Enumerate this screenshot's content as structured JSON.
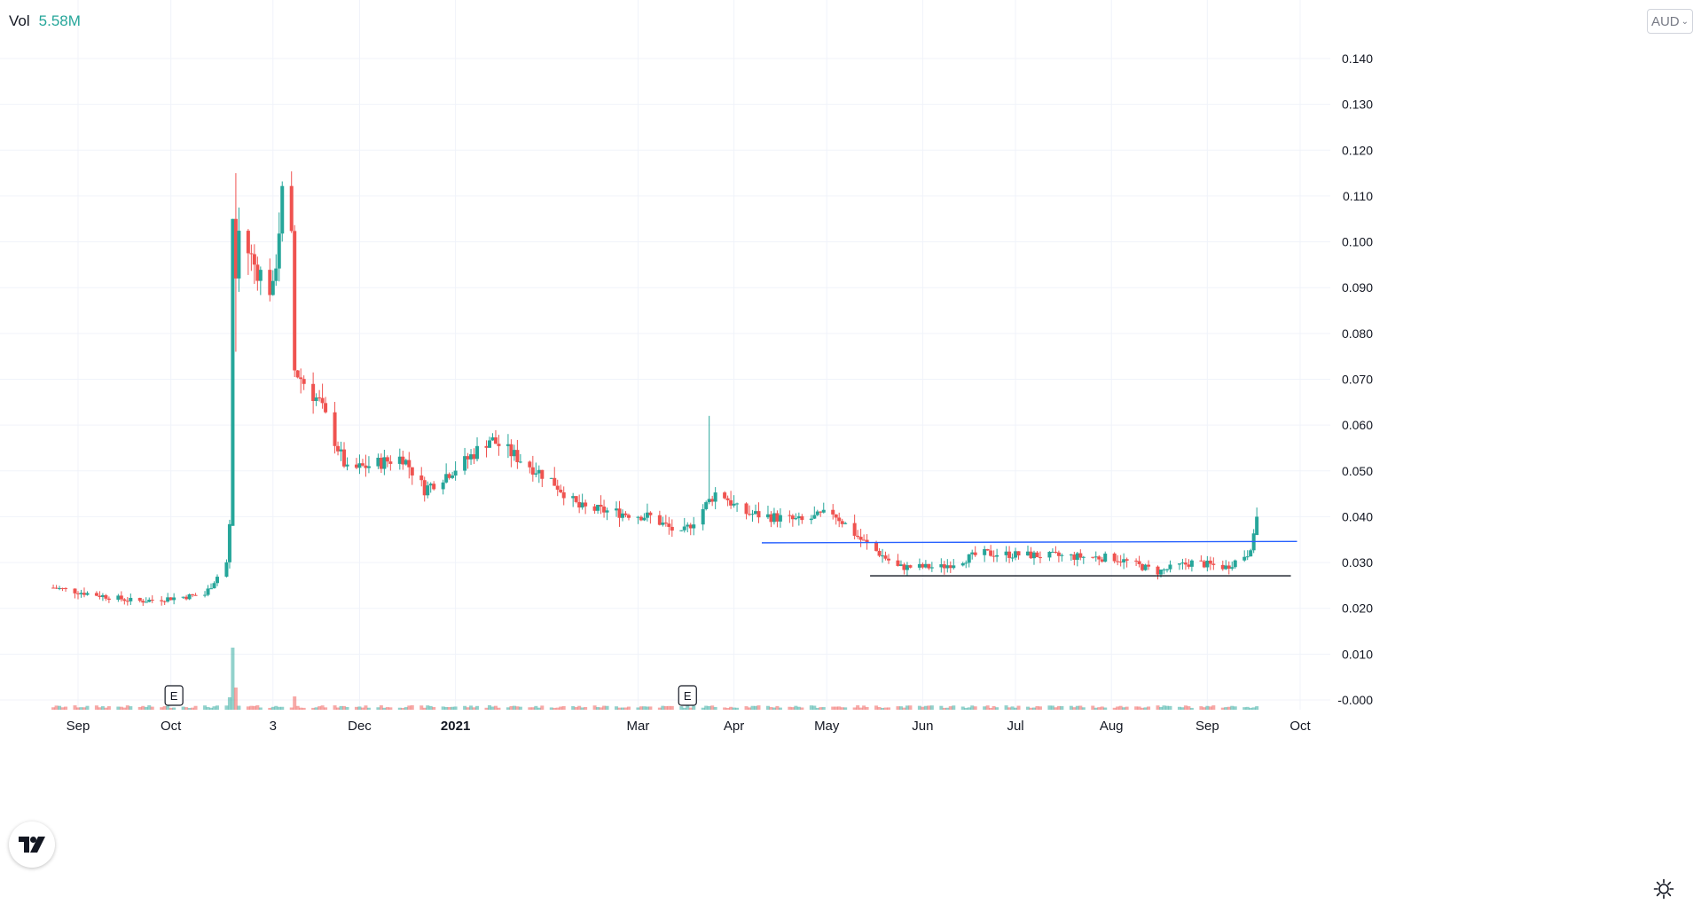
{
  "legend": {
    "label": "Vol",
    "value": "5.58M"
  },
  "currency": {
    "label": "AUD",
    "icon": "chevron-down-icon"
  },
  "colors": {
    "up": "#26a69a",
    "down": "#ef5350",
    "grid": "#f0f3fa",
    "axis_text": "#131722",
    "trendline": "#2962ff"
  },
  "chart_data": {
    "type": "candlestick",
    "title": "",
    "y_axis": {
      "ticks": [
        "0.140",
        "0.130",
        "0.120",
        "0.110",
        "0.100",
        "0.090",
        "0.080",
        "0.070",
        "0.060",
        "0.050",
        "0.040",
        "0.030",
        "0.020",
        "0.010",
        "-0.000"
      ],
      "range": [
        -0.002,
        0.15
      ],
      "position": "right"
    },
    "x_axis": {
      "ticks": [
        "Sep",
        "Oct",
        "3",
        "Dec",
        "2021",
        "Mar",
        "Apr",
        "May",
        "Jun",
        "Jul",
        "Aug",
        "Sep",
        "Oct"
      ],
      "date_range": [
        "2020-08-24",
        "2021-10-10"
      ]
    },
    "earnings_markers": [
      {
        "label": "E",
        "date": "2020-10-02"
      },
      {
        "label": "E",
        "date": "2021-03-17"
      }
    ],
    "key_points": [
      {
        "date": "2020-08-24",
        "price": 0.0245
      },
      {
        "date": "2020-09-20",
        "price": 0.0215
      },
      {
        "date": "2020-10-12",
        "price": 0.023
      },
      {
        "date": "2020-10-19",
        "price": 0.03
      },
      {
        "date": "2020-10-20",
        "price": 0.038
      },
      {
        "date": "2020-10-21",
        "price": 0.105
      },
      {
        "date": "2020-10-28",
        "price": 0.095
      },
      {
        "date": "2020-11-03",
        "price": 0.089
      },
      {
        "date": "2020-11-06",
        "price": 0.11
      },
      {
        "date": "2020-11-09",
        "price": 0.1
      },
      {
        "date": "2020-11-10",
        "price": 0.072
      },
      {
        "date": "2020-11-18",
        "price": 0.065
      },
      {
        "date": "2020-11-27",
        "price": 0.05
      },
      {
        "date": "2020-12-15",
        "price": 0.053
      },
      {
        "date": "2020-12-22",
        "price": 0.046
      },
      {
        "date": "2021-01-04",
        "price": 0.052
      },
      {
        "date": "2021-01-12",
        "price": 0.057
      },
      {
        "date": "2021-02-01",
        "price": 0.048
      },
      {
        "date": "2021-02-10",
        "price": 0.042
      },
      {
        "date": "2021-03-05",
        "price": 0.04
      },
      {
        "date": "2021-03-15",
        "price": 0.036
      },
      {
        "date": "2021-03-20",
        "price": 0.04
      },
      {
        "date": "2021-03-27",
        "price": 0.046
      },
      {
        "date": "2021-04-03",
        "price": 0.041
      },
      {
        "date": "2021-04-23",
        "price": 0.039
      },
      {
        "date": "2021-05-03",
        "price": 0.041
      },
      {
        "date": "2021-05-12",
        "price": 0.035
      },
      {
        "date": "2021-05-24",
        "price": 0.029
      },
      {
        "date": "2021-06-07",
        "price": 0.029
      },
      {
        "date": "2021-06-20",
        "price": 0.032
      },
      {
        "date": "2021-07-10",
        "price": 0.0315
      },
      {
        "date": "2021-08-02",
        "price": 0.031
      },
      {
        "date": "2021-08-16",
        "price": 0.028
      },
      {
        "date": "2021-08-27",
        "price": 0.03
      },
      {
        "date": "2021-09-07",
        "price": 0.029
      },
      {
        "date": "2021-09-14",
        "price": 0.032
      },
      {
        "date": "2021-09-17",
        "price": 0.037
      }
    ],
    "volume": {
      "baseline": "bottom",
      "spikes": [
        {
          "date": "2020-10-20",
          "value_rel": 0.14,
          "dir": "up"
        },
        {
          "date": "2020-10-21",
          "value_rel": 0.7,
          "dir": "up"
        },
        {
          "date": "2020-10-22",
          "value_rel": 0.25,
          "dir": "down"
        },
        {
          "date": "2020-11-10",
          "value_rel": 0.15,
          "dir": "down"
        },
        {
          "date": "2021-01-12",
          "value_rel": 0.05,
          "dir": "up"
        },
        {
          "date": "2021-03-24",
          "value_rel": 0.04,
          "dir": "down"
        }
      ]
    },
    "trendlines": [
      {
        "from": {
          "date": "2021-04-10",
          "price": 0.0343
        },
        "to": {
          "date": "2021-09-30",
          "price": 0.0346
        }
      },
      {
        "from": {
          "date": "2021-05-15",
          "price": 0.0271
        },
        "to": {
          "date": "2021-09-28",
          "price": 0.0271
        }
      }
    ],
    "grid": true,
    "last_candle": {
      "date": "2021-09-17",
      "open": 0.036,
      "high": 0.042,
      "low": 0.036,
      "close": 0.04
    }
  }
}
